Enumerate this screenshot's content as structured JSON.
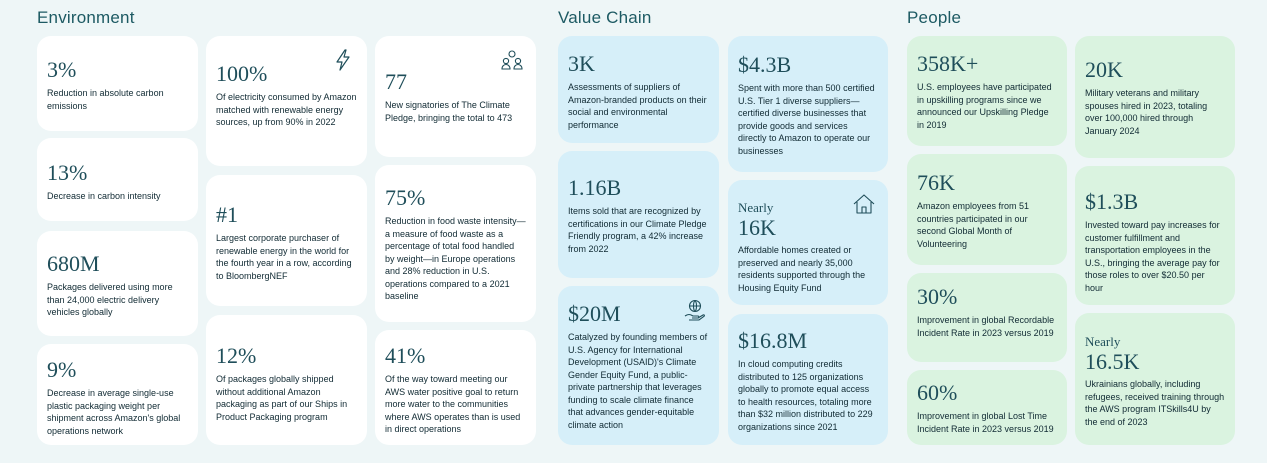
{
  "sections": {
    "environment": "Environment",
    "value_chain": "Value Chain",
    "people": "People"
  },
  "environment": {
    "c1": {
      "value": "3%",
      "desc": "Reduction in absolute carbon emissions"
    },
    "c2": {
      "value": "13%",
      "desc": "Decrease in carbon intensity"
    },
    "c3": {
      "value": "680M",
      "desc": "Packages delivered using more than 24,000 electric delivery vehicles globally"
    },
    "c4": {
      "value": "9%",
      "desc": "Decrease in average single-use plastic packaging weight per shipment across Amazon's global operations network"
    },
    "c5": {
      "value": "100%",
      "desc": "Of electricity consumed by Amazon matched with renewable energy sources, up from 90% in 2022",
      "icon": "lightning-icon"
    },
    "c6": {
      "value": "#1",
      "desc": "Largest corporate purchaser of renewable energy in the world for the fourth year in a row, according to BloombergNEF"
    },
    "c7": {
      "value": "12%",
      "desc": "Of packages globally shipped without additional Amazon packaging as part of our Ships in Product Packaging program"
    },
    "c8": {
      "value": "77",
      "desc": "New signatories of The Climate Pledge, bringing the total to 473",
      "icon": "people-group-icon"
    },
    "c9": {
      "value": "75%",
      "desc": "Reduction in food waste intensity—a measure of food waste as a percentage of total food handled by weight—in Europe operations and 28% reduction in U.S. operations compared to a 2021 baseline"
    },
    "c10": {
      "value": "41%",
      "desc": "Of the way toward meeting our AWS water positive goal to return more water to the communities where AWS operates than is used in direct operations"
    }
  },
  "value_chain": {
    "c1": {
      "value": "3K",
      "desc": "Assessments of suppliers of Amazon-branded products on their social and environmental performance"
    },
    "c2": {
      "value": "1.16B",
      "desc": "Items sold that are recognized by certifications in our Climate Pledge Friendly program, a 42% increase from 2022"
    },
    "c3": {
      "value": "$20M",
      "desc": "Catalyzed by founding members of U.S. Agency for International Development (USAID)'s Climate Gender Equity Fund, a public-private partnership that leverages funding to scale climate finance that advances gender-equitable climate action",
      "icon": "hand-globe-icon"
    },
    "c4": {
      "value": "$4.3B",
      "desc": "Spent with more than 500 certified U.S. Tier 1 diverse suppliers—certified diverse businesses that provide goods and services directly to Amazon to operate our businesses"
    },
    "c5": {
      "pre": "Nearly",
      "value": "16K",
      "desc": "Affordable homes created or preserved and nearly 35,000 residents supported through the Housing Equity Fund",
      "icon": "house-icon"
    },
    "c6": {
      "value": "$16.8M",
      "desc": "In cloud computing credits distributed to 125 organizations globally to promote equal access to health resources, totaling more than $32 million distributed to 229 organizations since 2021"
    }
  },
  "people": {
    "c1": {
      "value": "358K+",
      "desc": "U.S. employees have participated in upskilling programs since we announced our Upskilling Pledge in 2019"
    },
    "c2": {
      "value": "76K",
      "desc": "Amazon employees from 51 countries participated in our second Global Month of Volunteering"
    },
    "c3": {
      "value": "30%",
      "desc": "Improvement in global Recordable Incident Rate in 2023 versus 2019"
    },
    "c4": {
      "value": "60%",
      "desc": "Improvement in global Lost Time Incident Rate in 2023 versus 2019"
    },
    "c5": {
      "value": "20K",
      "desc": "Military veterans and military spouses hired in 2023, totaling over 100,000 hired through January 2024"
    },
    "c6": {
      "value": "$1.3B",
      "desc": "Invested toward pay increases for customer fulfillment and transportation employees in the U.S., bringing the average pay for those roles to over $20.50 per hour"
    },
    "c7": {
      "pre": "Nearly",
      "value": "16.5K",
      "desc": "Ukrainians globally, including refugees, received training through the AWS program ITSkills4U by the end of 2023"
    }
  },
  "colors": {
    "white_card": "#ffffff",
    "blue_card": "#d6eff9",
    "green_card": "#daf3e0",
    "title": "#1d5a63",
    "background": "#eef6f7"
  }
}
